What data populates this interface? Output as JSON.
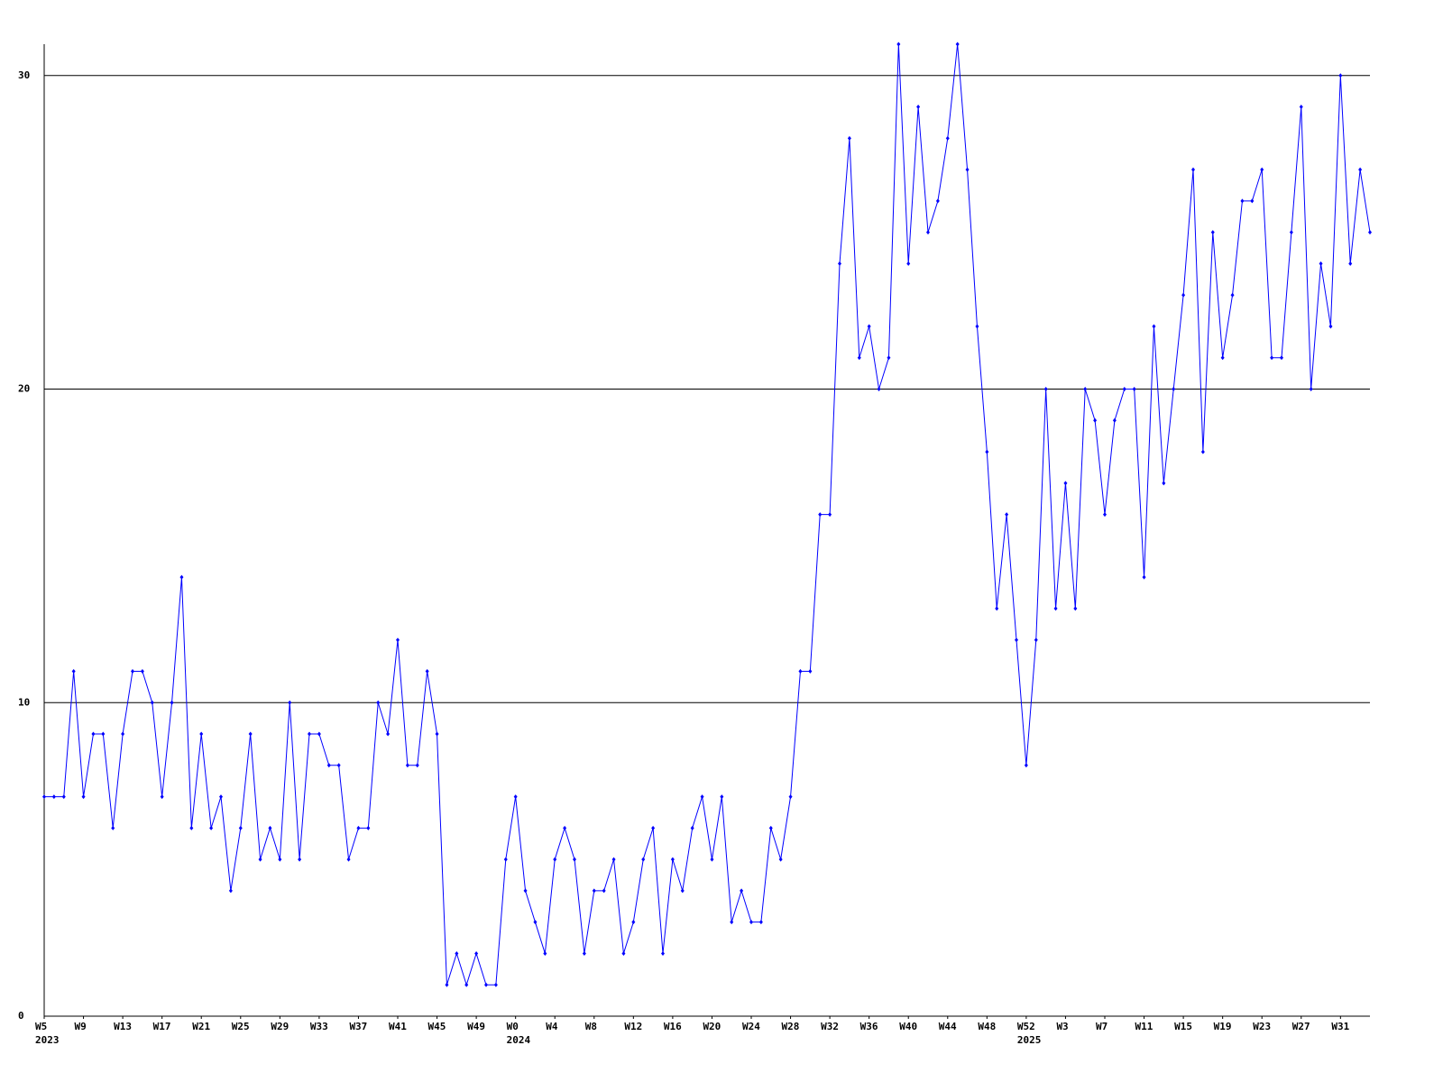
{
  "chart_data": {
    "type": "line",
    "color": "#0000ff",
    "grid": true,
    "ylim": [
      0,
      31
    ],
    "yticks": [
      0,
      10,
      20,
      30
    ],
    "categories": [
      "W5",
      null,
      null,
      null,
      "W9",
      null,
      null,
      null,
      "W13",
      null,
      null,
      null,
      "W17",
      null,
      null,
      null,
      "W21",
      null,
      null,
      null,
      "W25",
      null,
      null,
      null,
      "W29",
      null,
      null,
      null,
      "W33",
      null,
      null,
      null,
      "W37",
      null,
      null,
      null,
      "W41",
      null,
      null,
      null,
      "W45",
      null,
      null,
      null,
      "W49",
      null,
      null,
      null,
      "W0",
      null,
      null,
      null,
      "W4",
      null,
      null,
      null,
      "W8",
      null,
      null,
      null,
      "W12",
      null,
      null,
      null,
      "W16",
      null,
      null,
      null,
      "W20",
      null,
      null,
      null,
      "W24",
      null,
      null,
      null,
      "W28",
      null,
      null,
      null,
      "W32",
      null,
      null,
      null,
      "W36",
      null,
      null,
      null,
      "W40",
      null,
      null,
      null,
      "W44",
      null,
      null,
      null,
      "W48",
      null,
      null,
      null,
      "W52",
      null,
      null,
      null,
      "W3",
      null,
      null,
      null,
      "W7",
      null,
      null,
      null,
      "W11",
      null,
      null,
      null,
      "W15",
      null,
      null,
      null,
      "W19",
      null,
      null,
      null,
      "W23",
      null,
      null,
      null,
      "W27",
      null,
      null,
      null,
      "W31",
      null,
      null,
      null
    ],
    "year_labels": [
      "2023",
      null,
      null,
      null,
      null,
      null,
      null,
      null,
      null,
      null,
      null,
      null,
      null,
      null,
      null,
      null,
      null,
      null,
      null,
      null,
      null,
      null,
      null,
      null,
      null,
      null,
      null,
      null,
      null,
      null,
      null,
      null,
      null,
      null,
      null,
      null,
      null,
      null,
      null,
      null,
      null,
      null,
      null,
      null,
      null,
      null,
      null,
      null,
      "2024",
      null,
      null,
      null,
      null,
      null,
      null,
      null,
      null,
      null,
      null,
      null,
      null,
      null,
      null,
      null,
      null,
      null,
      null,
      null,
      null,
      null,
      null,
      null,
      null,
      null,
      null,
      null,
      null,
      null,
      null,
      null,
      null,
      null,
      null,
      null,
      null,
      null,
      null,
      null,
      null,
      null,
      null,
      null,
      null,
      null,
      null,
      null,
      null,
      null,
      null,
      null,
      "2025",
      null,
      null,
      null,
      null,
      null,
      null,
      null,
      null,
      null,
      null,
      null,
      null,
      null,
      null,
      null,
      null,
      null,
      null,
      null,
      null,
      null,
      null,
      null,
      null,
      null,
      null,
      null,
      null,
      null,
      null,
      null,
      null,
      null,
      null
    ],
    "values": [
      7,
      7,
      7,
      11,
      7,
      9,
      9,
      6,
      9,
      11,
      11,
      10,
      7,
      10,
      14,
      6,
      9,
      6,
      7,
      4,
      6,
      9,
      5,
      6,
      5,
      10,
      5,
      9,
      9,
      8,
      8,
      5,
      6,
      6,
      10,
      9,
      12,
      8,
      8,
      11,
      9,
      1,
      2,
      1,
      2,
      1,
      1,
      5,
      7,
      4,
      3,
      2,
      5,
      6,
      5,
      2,
      4,
      4,
      5,
      2,
      3,
      5,
      6,
      2,
      5,
      4,
      6,
      7,
      5,
      7,
      3,
      4,
      3,
      3,
      6,
      5,
      7,
      11,
      11,
      16,
      16,
      24,
      28,
      21,
      22,
      20,
      21,
      31,
      24,
      29,
      25,
      26,
      28,
      31,
      27,
      22,
      18,
      13,
      16,
      12,
      8,
      12,
      20,
      13,
      17,
      13,
      20,
      19,
      16,
      19,
      20,
      20,
      14,
      22,
      17,
      20,
      23,
      27,
      18,
      25,
      21,
      23,
      26,
      26,
      27,
      21,
      21,
      25,
      29,
      20,
      24,
      22,
      30,
      24,
      27,
      25
    ]
  }
}
